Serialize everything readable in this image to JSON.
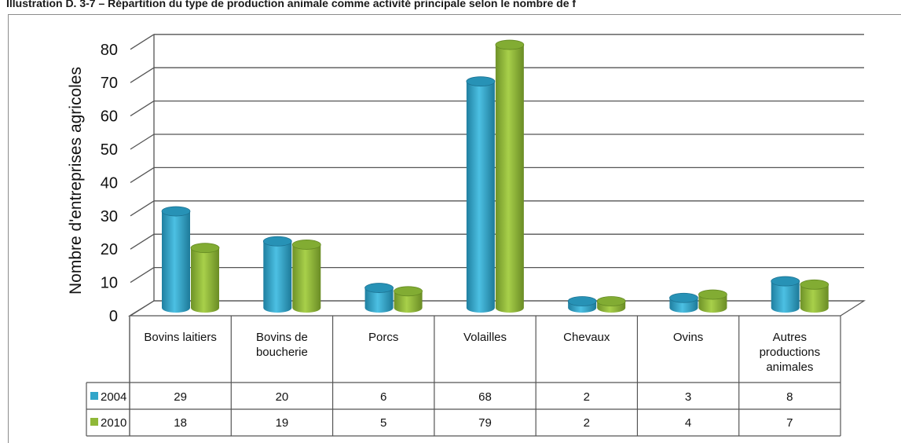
{
  "title": "Illustration D. 3-7 – Répartition du type de production animale comme activité principale selon le nombre de f",
  "chart_data": {
    "type": "bar",
    "ylabel": "Nombre d'entreprises agricoles",
    "xlabel": "",
    "ylim": [
      0,
      80
    ],
    "yticks": [
      "0",
      "10",
      "20",
      "30",
      "40",
      "50",
      "60",
      "70",
      "80"
    ],
    "categories": [
      [
        "Bovins laitiers"
      ],
      [
        "Bovins de",
        "boucherie"
      ],
      [
        "Porcs"
      ],
      [
        "Volailles"
      ],
      [
        "Chevaux"
      ],
      [
        "Ovins"
      ],
      [
        "Autres",
        "productions",
        "animales"
      ]
    ],
    "series": [
      {
        "name": "2004",
        "color": "#31a5c9",
        "values": [
          29,
          20,
          6,
          68,
          2,
          3,
          8
        ],
        "labels": [
          "29",
          "20",
          "6",
          "68",
          "2",
          "3",
          "8"
        ]
      },
      {
        "name": "2010",
        "color": "#8fb838",
        "values": [
          18,
          19,
          5,
          79,
          2,
          4,
          7
        ],
        "labels": [
          "18",
          "19",
          "5",
          "79",
          "2",
          "4",
          "7"
        ]
      }
    ],
    "grid": true,
    "legend": "data-table"
  }
}
